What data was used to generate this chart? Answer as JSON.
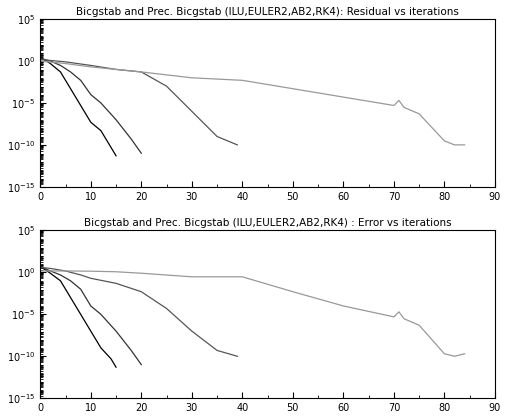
{
  "title1": "Bicgstab and Prec. Bicgstab (ILU,EULER2,AB2,RK4): Residual vs iterations",
  "title2": "Bicgstab and Prec. Bicgstab (ILU,EULER2,AB2,RK4) : Error vs iterations",
  "xlim": [
    0,
    90
  ],
  "ylim_log": [
    -15,
    5
  ],
  "figsize": [
    5.08,
    4.2
  ],
  "dpi": 100,
  "yticks": [
    1e-15,
    1e-10,
    1e-05,
    1.0,
    100000.0
  ],
  "ytick_labels": [
    "10$^{-15}$",
    "10$^{-10}$",
    "10$^{-5}$",
    "10$^{0}$",
    "10$^{5}$"
  ]
}
